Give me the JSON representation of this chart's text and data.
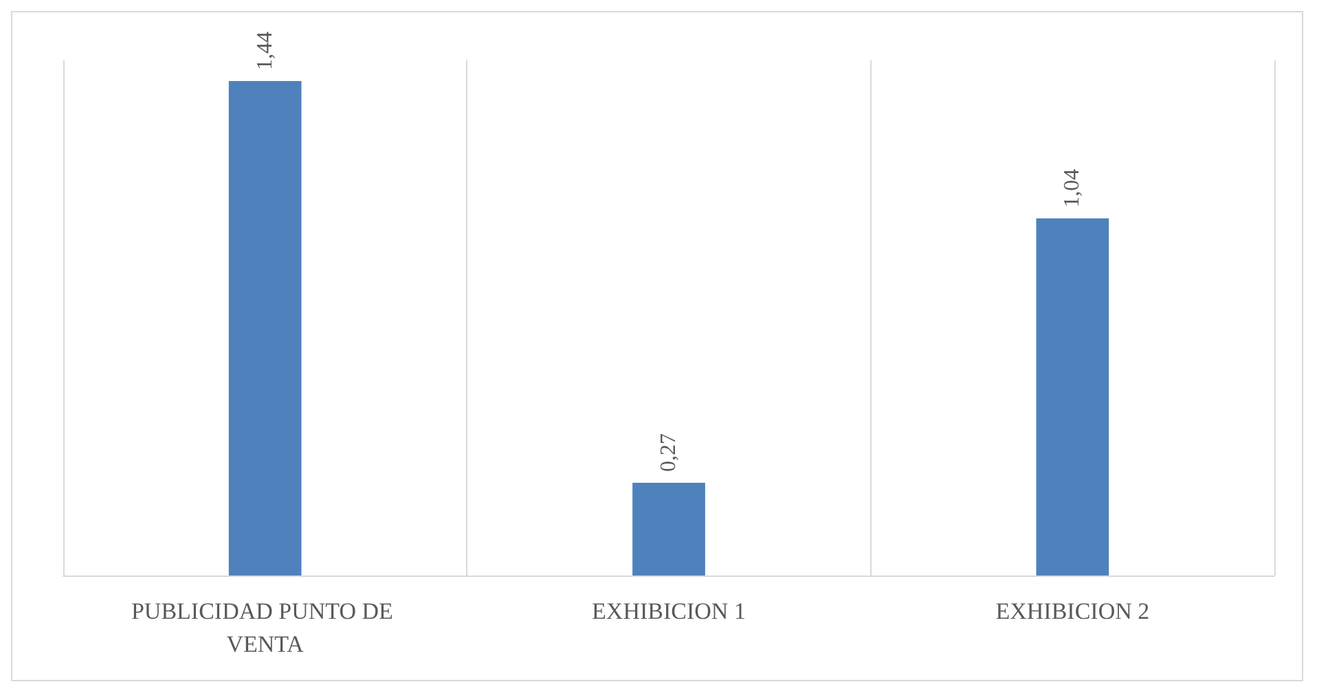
{
  "chart_data": {
    "type": "bar",
    "categories": [
      "PUBLICIDAD PUNTO DE VENTA",
      "EXHIBICION 1",
      "EXHIBICION 2"
    ],
    "values": [
      1.44,
      0.27,
      1.04
    ],
    "value_labels": [
      "1,44",
      "0,27",
      "1,04"
    ],
    "color": "#4f81bd",
    "grid": "x"
  }
}
